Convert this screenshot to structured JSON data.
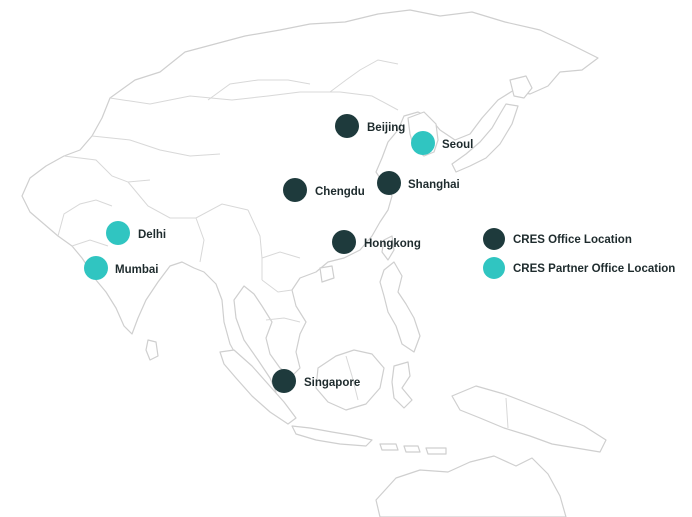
{
  "colors": {
    "office": "#1e3a3c",
    "partner": "#30c5c1",
    "label_text": "#1e2b2d"
  },
  "legend": {
    "office_label": "CRES Office Location",
    "partner_label": "CRES Partner Office Location"
  },
  "cities": [
    {
      "name": "Beijing",
      "type": "office"
    },
    {
      "name": "Seoul",
      "type": "partner"
    },
    {
      "name": "Chengdu",
      "type": "office"
    },
    {
      "name": "Shanghai",
      "type": "office"
    },
    {
      "name": "Hongkong",
      "type": "office"
    },
    {
      "name": "Delhi",
      "type": "partner"
    },
    {
      "name": "Mumbai",
      "type": "partner"
    },
    {
      "name": "Singapore",
      "type": "office"
    }
  ]
}
